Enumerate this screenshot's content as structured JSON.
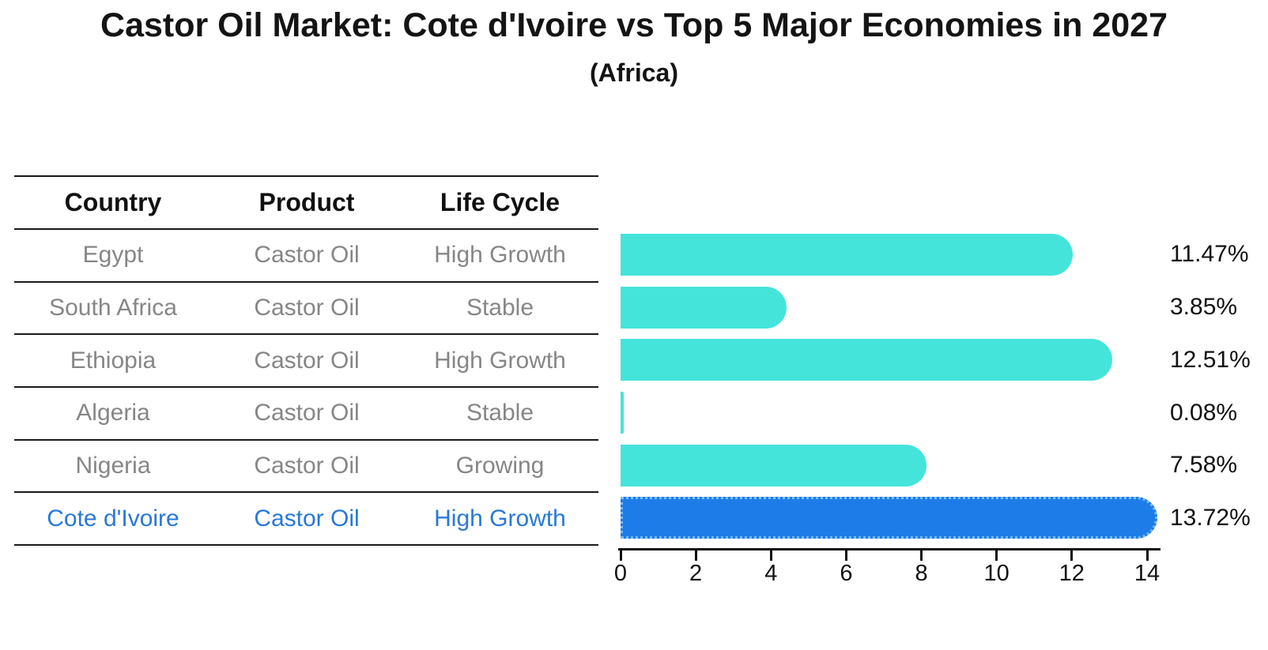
{
  "title": "Castor Oil Market: Cote d'Ivoire vs Top 5 Major Economies in 2027",
  "subtitle": "(Africa)",
  "table": {
    "headers": [
      "Country",
      "Product",
      "Life Cycle"
    ],
    "rows": [
      {
        "country": "Egypt",
        "product": "Castor Oil",
        "life_cycle": "High Growth",
        "highlight": false
      },
      {
        "country": "South Africa",
        "product": "Castor Oil",
        "life_cycle": "Stable",
        "highlight": false
      },
      {
        "country": "Ethiopia",
        "product": "Castor Oil",
        "life_cycle": "High Growth",
        "highlight": false
      },
      {
        "country": "Algeria",
        "product": "Castor Oil",
        "life_cycle": "Stable",
        "highlight": false
      },
      {
        "country": "Nigeria",
        "product": "Castor Oil",
        "life_cycle": "Growing",
        "highlight": false
      },
      {
        "country": "Cote d'Ivoire",
        "product": "Castor Oil",
        "life_cycle": "High Growth",
        "highlight": true
      }
    ]
  },
  "chart_data": {
    "type": "bar",
    "orientation": "horizontal",
    "title": "Castor Oil Market: Cote d'Ivoire vs Top 5 Major Economies in 2027",
    "subtitle": "(Africa)",
    "categories": [
      "Egypt",
      "South Africa",
      "Ethiopia",
      "Algeria",
      "Nigeria",
      "Cote d'Ivoire"
    ],
    "values": [
      11.47,
      3.85,
      12.51,
      0.08,
      7.58,
      13.72
    ],
    "value_labels": [
      "11.47%",
      "3.85%",
      "12.51%",
      "0.08%",
      "7.58%",
      "13.72%"
    ],
    "x_ticks": [
      0,
      2,
      4,
      6,
      8,
      10,
      12,
      14
    ],
    "xlim": [
      0,
      14
    ],
    "xlabel": "",
    "ylabel": "",
    "grid": false,
    "legend": false,
    "highlight_index": 5
  },
  "colors": {
    "bar": "#45E4DB",
    "highlight_bar": "#1E7CE8",
    "highlight_edge": "#79BCF6",
    "highlight_text": "#2878D8",
    "table_text": "#868686",
    "ink": "#141414"
  }
}
